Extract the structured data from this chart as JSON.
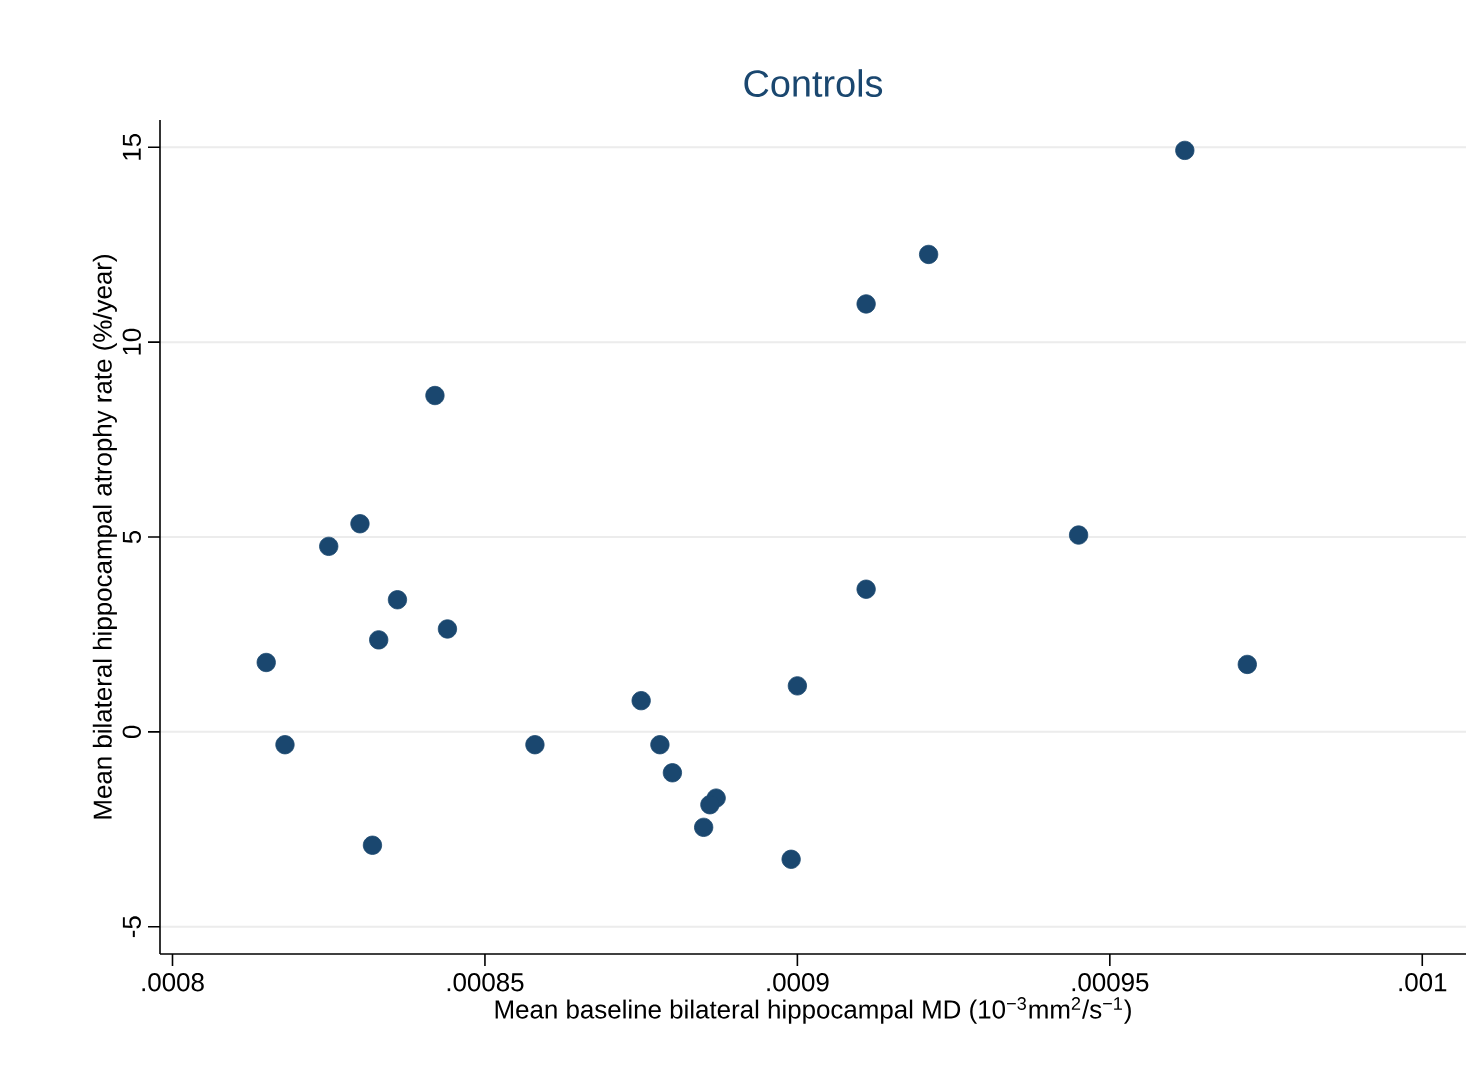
{
  "chart_data": {
    "type": "scatter",
    "title": "Controls",
    "xlabel": "Mean baseline bilateral hippocampal MD (10$^{−3}$mm$^{2}$/s$^{−1}$)",
    "ylabel": "Mean bilateral hippocampal atrophy rate (%/year)",
    "xlim": [
      0.000798,
      0.001007
    ],
    "ylim": [
      -5.7,
      15.7
    ],
    "xticks": [
      {
        "value": 0.0008,
        "label": ".0008"
      },
      {
        "value": 0.00085,
        "label": ".00085"
      },
      {
        "value": 0.0009,
        "label": ".0009"
      },
      {
        "value": 0.00095,
        "label": ".00095"
      },
      {
        "value": 0.001,
        "label": ".001"
      }
    ],
    "yticks": [
      -5,
      0,
      5,
      10,
      15
    ],
    "grid": "y",
    "marker": "circle",
    "series": [
      {
        "color": "#1a476f",
        "x": [
          0.000842,
          0.00083,
          0.000825,
          0.000836,
          0.000833,
          0.000844,
          0.000815,
          0.000818,
          0.000858,
          0.000875,
          0.000878,
          0.00088,
          0.000887,
          0.000886,
          0.000885,
          0.000832,
          0.000899,
          0.0009,
          0.000962,
          0.000921,
          0.000911,
          0.000945,
          0.000911,
          0.000972
        ],
        "values": [
          8.63,
          5.34,
          4.76,
          3.39,
          2.36,
          2.64,
          1.78,
          -0.33,
          -0.33,
          0.8,
          -0.33,
          -1.05,
          -1.7,
          -1.87,
          -2.45,
          -2.91,
          -3.27,
          1.18,
          14.92,
          12.25,
          10.98,
          5.05,
          3.66,
          1.73
        ]
      }
    ]
  }
}
